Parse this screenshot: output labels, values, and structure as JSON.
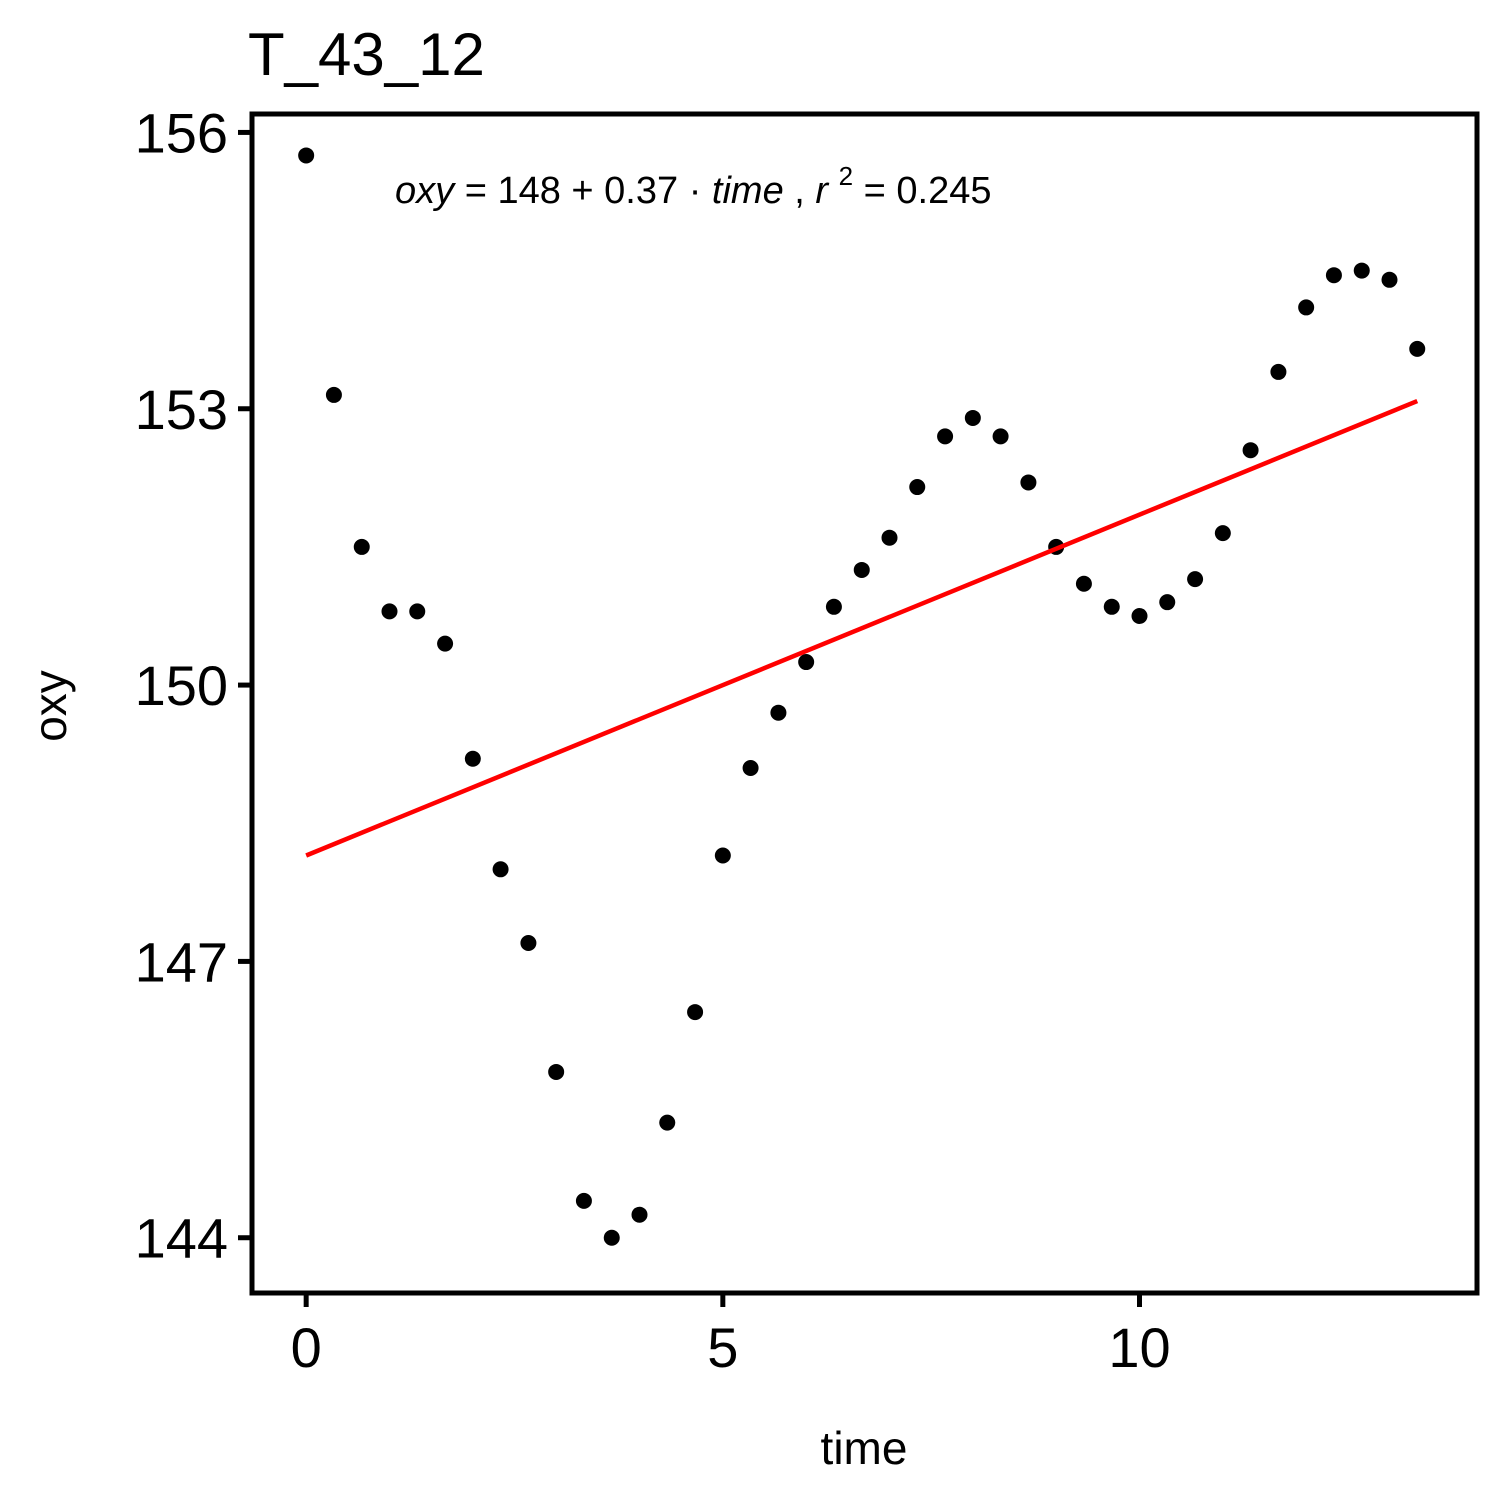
{
  "chart_data": {
    "type": "scatter",
    "title": "T_43_12",
    "xlabel": "time",
    "ylabel": "oxy",
    "xlim": [
      -0.65,
      14.05
    ],
    "ylim": [
      143.4,
      156.2
    ],
    "xticks": [
      0,
      5,
      10
    ],
    "yticks": [
      144,
      147,
      150,
      153,
      156
    ],
    "grid": false,
    "legend": "none",
    "point_color": "#000000",
    "fit_color": "#ff0000",
    "points": {
      "x": [
        0,
        0.333,
        0.667,
        1.0,
        1.333,
        1.667,
        2.0,
        2.333,
        2.667,
        3.0,
        3.333,
        3.667,
        4.0,
        4.333,
        4.667,
        5.0,
        5.333,
        5.667,
        6.0,
        6.333,
        6.667,
        7.0,
        7.333,
        7.667,
        8.0,
        8.333,
        8.667,
        9.0,
        9.333,
        9.667,
        10.0,
        10.333,
        10.667,
        11.0,
        11.333,
        11.667,
        12.0,
        12.333,
        12.667,
        13.0,
        13.333
      ],
      "y": [
        155.75,
        153.15,
        151.5,
        150.8,
        150.8,
        150.45,
        149.2,
        148.0,
        147.2,
        145.8,
        144.4,
        144.0,
        144.25,
        145.25,
        146.45,
        148.15,
        149.1,
        149.7,
        150.25,
        150.85,
        151.25,
        151.6,
        152.15,
        152.7,
        152.9,
        152.7,
        152.2,
        151.5,
        151.1,
        150.85,
        150.75,
        150.9,
        151.15,
        151.65,
        152.55,
        153.4,
        154.1,
        154.45,
        154.5,
        154.4,
        153.65
      ]
    },
    "fit": {
      "intercept": 148.15,
      "slope": 0.37,
      "x_range": [
        0,
        13.333
      ]
    },
    "equation": {
      "lhs": "oxy",
      "eq_sign": " = ",
      "intercept": "148",
      "plus": " + ",
      "slope": "0.37",
      "dot": " · ",
      "var": "time",
      "comma": ",  ",
      "r": "r",
      "exp": "2",
      "r2_eq": " = ",
      "r2_value": "0.245"
    }
  }
}
